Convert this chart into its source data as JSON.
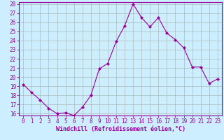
{
  "x": [
    0,
    1,
    2,
    3,
    4,
    5,
    6,
    7,
    8,
    9,
    10,
    11,
    12,
    13,
    14,
    15,
    16,
    17,
    18,
    19,
    20,
    21,
    22,
    23
  ],
  "y": [
    19.2,
    18.3,
    17.5,
    16.6,
    16.0,
    16.1,
    15.8,
    16.7,
    18.0,
    20.9,
    21.5,
    23.9,
    25.6,
    28.0,
    26.5,
    25.5,
    26.5,
    24.8,
    24.1,
    23.2,
    21.1,
    21.1,
    19.3,
    19.8
  ],
  "line_color": "#990099",
  "marker": "D",
  "marker_size": 2.0,
  "bg_color": "#cceeff",
  "grid_color": "#aabbbb",
  "xlabel": "Windchill (Refroidissement éolien,°C)",
  "ylim_min": 15.8,
  "ylim_max": 28.2,
  "xlim_min": -0.5,
  "xlim_max": 23.5,
  "yticks": [
    16,
    17,
    18,
    19,
    20,
    21,
    22,
    23,
    24,
    25,
    26,
    27,
    28
  ],
  "xticks": [
    0,
    1,
    2,
    3,
    4,
    5,
    6,
    7,
    8,
    9,
    10,
    11,
    12,
    13,
    14,
    15,
    16,
    17,
    18,
    19,
    20,
    21,
    22,
    23
  ],
  "tick_label_color": "#990099",
  "label_fontsize": 6.0,
  "tick_fontsize": 5.5,
  "axis_border_color": "#990099"
}
